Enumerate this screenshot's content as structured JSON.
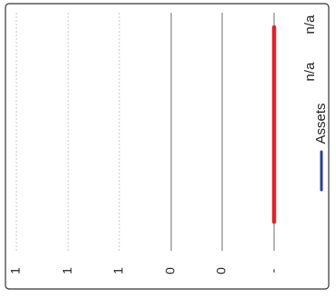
{
  "chart_data": {
    "type": "bar",
    "orientation": "rotated-90",
    "categories": [
      ""
    ],
    "series": [
      {
        "name": "n/a",
        "values": [
          0
        ],
        "color": "#e0242b"
      },
      {
        "name": "n/a",
        "values": [
          0
        ],
        "color": "#e0242b"
      },
      {
        "name": "Assets",
        "values": [
          0
        ],
        "color": "#2c3f8f"
      }
    ],
    "ticks": [
      "-",
      "0",
      "0",
      "1",
      "1",
      "1"
    ],
    "grid": true,
    "legend_position": "right"
  }
}
